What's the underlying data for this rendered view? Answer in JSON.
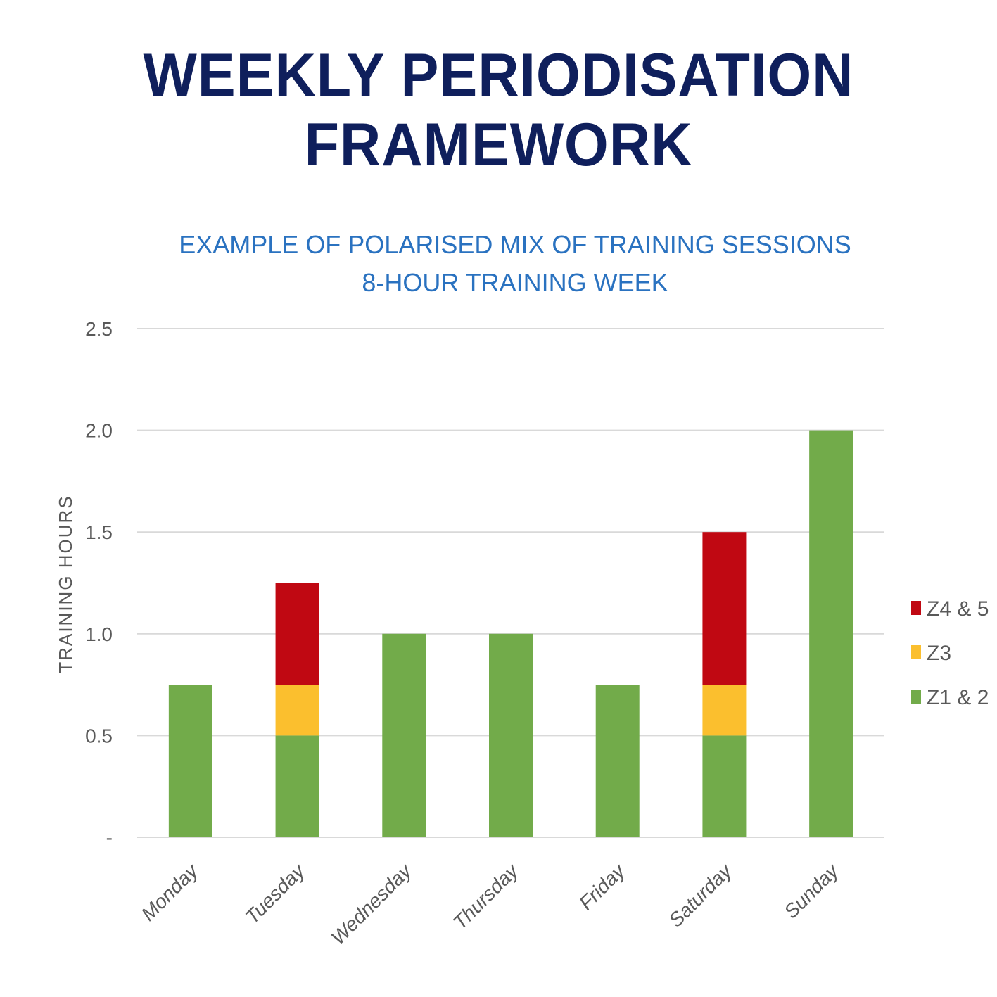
{
  "title": "WEEKLY PERIODISATION FRAMEWORK",
  "colors": {
    "title": "#0f1f5c",
    "chart_title": "#2a72c0",
    "z12": "#72ab4a",
    "z3": "#fbbf2e",
    "z45": "#c00812",
    "grid": "#d9d9d9",
    "text": "#595959"
  },
  "chart_data": {
    "type": "bar",
    "stacked": true,
    "title": "EXAMPLE OF POLARISED MIX OF TRAINING SESSIONS",
    "subtitle": "8-HOUR TRAINING WEEK",
    "xlabel": "",
    "ylabel": "TRAINING HOURS",
    "ylim": [
      0,
      2.5
    ],
    "yticks": [
      "-",
      "0.5",
      "1.0",
      "1.5",
      "2.0",
      "2.5"
    ],
    "ytick_values": [
      0,
      0.5,
      1.0,
      1.5,
      2.0,
      2.5
    ],
    "grid": true,
    "legend_position": "right",
    "categories": [
      "Monday",
      "Tuesday",
      "Wednesday",
      "Thursday",
      "Friday",
      "Saturday",
      "Sunday"
    ],
    "series": [
      {
        "name": "Z1 & 2",
        "color": "#72ab4a",
        "values": [
          0.75,
          0.5,
          1.0,
          1.0,
          0.75,
          0.5,
          2.0
        ]
      },
      {
        "name": "Z3",
        "color": "#fbbf2e",
        "values": [
          0,
          0.25,
          0,
          0,
          0,
          0.25,
          0
        ]
      },
      {
        "name": "Z4 & 5",
        "color": "#c00812",
        "values": [
          0,
          0.5,
          0,
          0,
          0,
          0.75,
          0
        ]
      }
    ],
    "legend_order": [
      "Z4 & 5",
      "Z3",
      "Z1 & 2"
    ]
  }
}
